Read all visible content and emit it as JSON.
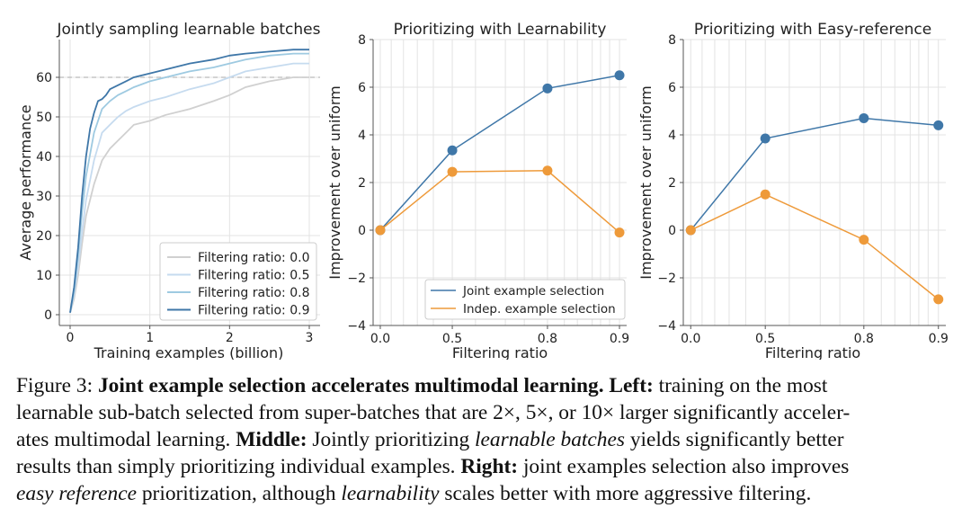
{
  "chart_data": [
    {
      "type": "line",
      "title": "Jointly sampling learnable batches",
      "xlabel": "Training examples (billion)",
      "ylabel": "Average performance",
      "xlim": [
        0,
        3
      ],
      "ylim": [
        0,
        67
      ],
      "xticks": [
        0,
        1,
        2,
        3
      ],
      "yticks": [
        0,
        10,
        20,
        30,
        40,
        50,
        60
      ],
      "reference_line": 60,
      "legend_position": "bottom-right",
      "series": [
        {
          "name": "Filtering ratio: 0.0",
          "color": "#d0d0d0",
          "x": [
            0,
            0.05,
            0.1,
            0.15,
            0.2,
            0.3,
            0.4,
            0.5,
            0.6,
            0.7,
            0.8,
            1.0,
            1.2,
            1.5,
            1.8,
            2.0,
            2.2,
            2.5,
            2.8,
            3.0
          ],
          "y": [
            0.5,
            4,
            10,
            18,
            25,
            33,
            39,
            42,
            44,
            46,
            48,
            49,
            50.5,
            52,
            54,
            55.5,
            57.5,
            59,
            60,
            60
          ]
        },
        {
          "name": "Filtering ratio: 0.5",
          "color": "#c6dbef",
          "x": [
            0,
            0.05,
            0.1,
            0.15,
            0.2,
            0.3,
            0.4,
            0.5,
            0.6,
            0.7,
            0.8,
            1.0,
            1.2,
            1.5,
            1.8,
            2.0,
            2.2,
            2.5,
            2.8,
            3.0
          ],
          "y": [
            0.5,
            5,
            12,
            21,
            29,
            39,
            46,
            48,
            50,
            51.5,
            52.5,
            54,
            55,
            57,
            58.5,
            60,
            61.5,
            62.5,
            63.5,
            63.5
          ]
        },
        {
          "name": "Filtering ratio: 0.8",
          "color": "#9ecae1",
          "x": [
            0,
            0.05,
            0.1,
            0.15,
            0.2,
            0.3,
            0.4,
            0.5,
            0.6,
            0.7,
            0.8,
            1.0,
            1.2,
            1.5,
            1.8,
            2.0,
            2.2,
            2.5,
            2.8,
            3.0
          ],
          "y": [
            0.5,
            6,
            15,
            26,
            35,
            46,
            52,
            54,
            55.5,
            56.5,
            57.5,
            59,
            60,
            61.5,
            62.5,
            63.5,
            64.5,
            65.5,
            66,
            66
          ]
        },
        {
          "name": "Filtering ratio: 0.9",
          "color": "#3f77a8",
          "x": [
            0,
            0.05,
            0.1,
            0.15,
            0.2,
            0.25,
            0.3,
            0.35,
            0.4,
            0.45,
            0.5,
            0.6,
            0.7,
            0.8,
            1.0,
            1.2,
            1.5,
            1.8,
            2.0,
            2.2,
            2.5,
            2.8,
            3.0
          ],
          "y": [
            0.5,
            7,
            17,
            30,
            40,
            47,
            51,
            54,
            54.5,
            55.5,
            57,
            58,
            59,
            60,
            61,
            62,
            63.5,
            64.5,
            65.5,
            66,
            66.5,
            67,
            67
          ]
        }
      ]
    },
    {
      "type": "line",
      "title": "Prioritizing with Learnability",
      "xlabel": "Filtering ratio",
      "ylabel": "Improvement over uniform",
      "x": [
        0.0,
        0.5,
        0.8,
        0.9
      ],
      "xticklabels": [
        "0.0",
        "0.5",
        "0.8",
        "0.9"
      ],
      "ylim": [
        -4,
        8
      ],
      "yticks": [
        -4,
        -2,
        0,
        2,
        4,
        6,
        8
      ],
      "legend_position": "bottom-right",
      "series": [
        {
          "name": "Joint example selection",
          "color": "#3f77a8",
          "values": [
            0.0,
            3.35,
            5.95,
            6.5
          ]
        },
        {
          "name": "Indep. example selection",
          "color": "#ee9a3a",
          "values": [
            0.0,
            2.45,
            2.5,
            -0.1
          ]
        }
      ]
    },
    {
      "type": "line",
      "title": "Prioritizing with Easy-reference",
      "xlabel": "Filtering ratio",
      "ylabel": "Improvement over uniform",
      "x": [
        0.0,
        0.5,
        0.8,
        0.9
      ],
      "xticklabels": [
        "0.0",
        "0.5",
        "0.8",
        "0.9"
      ],
      "ylim": [
        -4,
        8
      ],
      "yticks": [
        -4,
        -2,
        0,
        2,
        4,
        6,
        8
      ],
      "series": [
        {
          "name": "Joint example selection",
          "color": "#3f77a8",
          "values": [
            0.0,
            3.85,
            4.7,
            4.4
          ]
        },
        {
          "name": "Indep. example selection",
          "color": "#ee9a3a",
          "values": [
            0.0,
            1.5,
            -0.4,
            -2.9
          ]
        }
      ]
    }
  ],
  "caption": {
    "figure_label": "Figure 3:",
    "bold_title": "Joint example selection accelerates multimodal learning.",
    "left_label": "Left:",
    "left_text_1": "training on the most",
    "left_text_2": "learnable sub-batch selected from super-batches that are 2×, 5×, or 10× larger significantly acceler-",
    "left_text_3": "ates multimodal learning.",
    "middle_label": "Middle:",
    "middle_text_1": "Jointly prioritizing",
    "middle_em": "learnable batches",
    "middle_text_2": "yields significantly better",
    "middle_text_3": "results than simply prioritizing individual examples.",
    "right_label": "Right:",
    "right_text_1": "joint examples selection also improves",
    "right_em_1": "easy reference",
    "right_text_2": "prioritization, although",
    "right_em_2": "learnability",
    "right_text_3": "scales better with more aggressive filtering."
  }
}
